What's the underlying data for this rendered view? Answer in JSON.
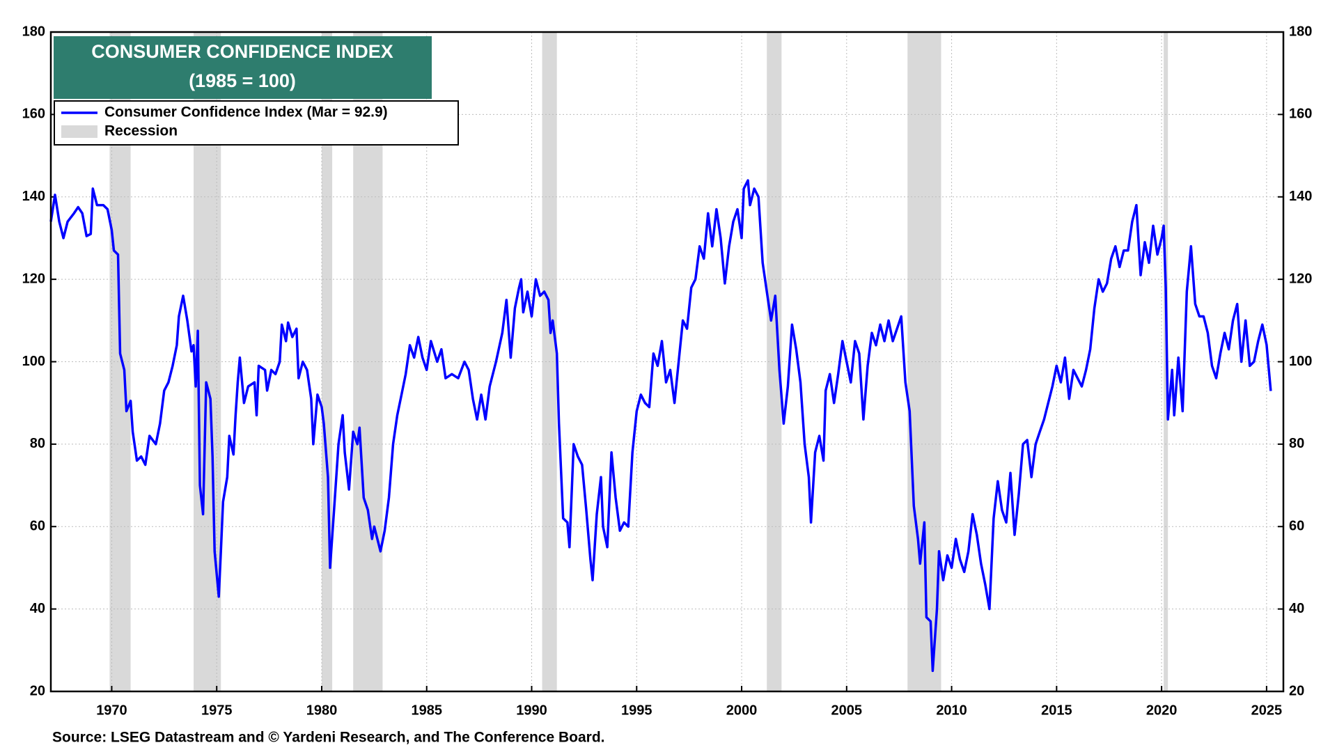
{
  "chart_data": {
    "type": "line",
    "title": "CONSUMER CONFIDENCE INDEX",
    "subtitle": "(1985 = 100)",
    "source": "Source: LSEG Datastream and © Yardeni Research, and The Conference Board.",
    "xlim": [
      1967.1,
      2025.8
    ],
    "xticks": [
      1970,
      1975,
      1980,
      1985,
      1990,
      1995,
      2000,
      2005,
      2010,
      2015,
      2020,
      2025
    ],
    "ylim": [
      20,
      180
    ],
    "yticks": [
      20,
      40,
      60,
      80,
      100,
      120,
      140,
      160,
      180
    ],
    "y2lim": [
      20,
      180
    ],
    "y2ticks": [
      20,
      40,
      60,
      80,
      100,
      120,
      140,
      160,
      180
    ],
    "grid": true,
    "legend": "top-left",
    "recession_label": "Recession",
    "recession_color": "#d9d9d9",
    "recessions": [
      {
        "start": 1969.9,
        "end": 1970.9
      },
      {
        "start": 1973.9,
        "end": 1975.2
      },
      {
        "start": 1980.0,
        "end": 1980.5
      },
      {
        "start": 1981.5,
        "end": 1982.9
      },
      {
        "start": 1990.5,
        "end": 1991.2
      },
      {
        "start": 2001.2,
        "end": 2001.9
      },
      {
        "start": 2007.9,
        "end": 2009.5
      },
      {
        "start": 2020.1,
        "end": 2020.3
      }
    ],
    "x": [
      1967.1,
      1967.3,
      1967.5,
      1967.7,
      1967.9,
      1968.2,
      1968.4,
      1968.6,
      1968.8,
      1969.0,
      1969.1,
      1969.3,
      1969.6,
      1969.8,
      1970.0,
      1970.1,
      1970.3,
      1970.4,
      1970.6,
      1970.7,
      1970.9,
      1971.0,
      1971.2,
      1971.4,
      1971.6,
      1971.8,
      1972.1,
      1972.3,
      1972.5,
      1972.7,
      1972.9,
      1973.1,
      1973.2,
      1973.4,
      1973.6,
      1973.8,
      1973.9,
      1974.0,
      1974.1,
      1974.2,
      1974.35,
      1974.5,
      1974.7,
      1974.8,
      1974.9,
      1975.1,
      1975.2,
      1975.3,
      1975.5,
      1975.6,
      1975.8,
      1975.9,
      1976.0,
      1976.1,
      1976.3,
      1976.5,
      1976.8,
      1976.9,
      1977.0,
      1977.3,
      1977.4,
      1977.6,
      1977.8,
      1978.0,
      1978.1,
      1978.3,
      1978.4,
      1978.6,
      1978.8,
      1978.9,
      1979.1,
      1979.3,
      1979.5,
      1979.6,
      1979.8,
      1980.0,
      1980.1,
      1980.3,
      1980.4,
      1980.6,
      1980.8,
      1981.0,
      1981.1,
      1981.3,
      1981.5,
      1981.7,
      1981.8,
      1982.0,
      1982.2,
      1982.4,
      1982.5,
      1982.7,
      1982.8,
      1983.0,
      1983.2,
      1983.4,
      1983.6,
      1983.8,
      1984.0,
      1984.2,
      1984.4,
      1984.6,
      1984.8,
      1985.0,
      1985.2,
      1985.5,
      1985.7,
      1985.9,
      1986.2,
      1986.5,
      1986.8,
      1987.0,
      1987.2,
      1987.4,
      1987.6,
      1987.8,
      1988.0,
      1988.3,
      1988.6,
      1988.8,
      1989.0,
      1989.2,
      1989.4,
      1989.5,
      1989.6,
      1989.8,
      1990.0,
      1990.2,
      1990.4,
      1990.6,
      1990.8,
      1990.9,
      1991.0,
      1991.2,
      1991.3,
      1991.5,
      1991.7,
      1991.8,
      1992.0,
      1992.2,
      1992.4,
      1992.6,
      1992.8,
      1992.9,
      1993.1,
      1993.3,
      1993.4,
      1993.6,
      1993.8,
      1994.0,
      1994.2,
      1994.4,
      1994.6,
      1994.8,
      1995.0,
      1995.2,
      1995.4,
      1995.6,
      1995.8,
      1996.0,
      1996.2,
      1996.4,
      1996.6,
      1996.8,
      1997.0,
      1997.2,
      1997.4,
      1997.6,
      1997.8,
      1998.0,
      1998.2,
      1998.4,
      1998.6,
      1998.8,
      1999.0,
      1999.2,
      1999.4,
      1999.6,
      1999.8,
      2000.0,
      2000.1,
      2000.3,
      2000.4,
      2000.6,
      2000.8,
      2001.0,
      2001.2,
      2001.4,
      2001.6,
      2001.8,
      2002.0,
      2002.2,
      2002.4,
      2002.6,
      2002.8,
      2003.0,
      2003.2,
      2003.3,
      2003.5,
      2003.7,
      2003.9,
      2004.0,
      2004.2,
      2004.4,
      2004.6,
      2004.8,
      2005.0,
      2005.2,
      2005.4,
      2005.6,
      2005.8,
      2006.0,
      2006.2,
      2006.4,
      2006.6,
      2006.8,
      2007.0,
      2007.2,
      2007.4,
      2007.6,
      2007.8,
      2008.0,
      2008.2,
      2008.4,
      2008.5,
      2008.7,
      2008.8,
      2009.0,
      2009.1,
      2009.3,
      2009.4,
      2009.6,
      2009.8,
      2010.0,
      2010.2,
      2010.4,
      2010.6,
      2010.8,
      2011.0,
      2011.2,
      2011.4,
      2011.6,
      2011.8,
      2012.0,
      2012.2,
      2012.4,
      2012.6,
      2012.8,
      2013.0,
      2013.2,
      2013.4,
      2013.6,
      2013.8,
      2014.0,
      2014.2,
      2014.4,
      2014.6,
      2014.8,
      2015.0,
      2015.2,
      2015.4,
      2015.6,
      2015.8,
      2016.0,
      2016.2,
      2016.4,
      2016.6,
      2016.8,
      2017.0,
      2017.2,
      2017.4,
      2017.6,
      2017.8,
      2018.0,
      2018.2,
      2018.4,
      2018.6,
      2018.8,
      2019.0,
      2019.2,
      2019.4,
      2019.6,
      2019.8,
      2020.0,
      2020.1,
      2020.2,
      2020.3,
      2020.5,
      2020.6,
      2020.8,
      2021.0,
      2021.2,
      2021.4,
      2021.6,
      2021.8,
      2022.0,
      2022.2,
      2022.4,
      2022.6,
      2022.8,
      2023.0,
      2023.2,
      2023.4,
      2023.6,
      2023.8,
      2024.0,
      2024.2,
      2024.4,
      2024.6,
      2024.8,
      2025.0,
      2025.2
    ],
    "series": [
      {
        "name": "Consumer Confidence Index (Mar = 92.9)",
        "color": "#0000ff",
        "values": [
          134,
          140.5,
          134,
          130,
          134,
          136,
          137.5,
          136,
          130.5,
          131,
          142,
          138,
          138,
          137,
          132,
          127,
          126,
          102,
          98,
          88,
          90.5,
          83,
          76,
          77,
          75,
          82,
          80,
          85,
          93,
          95,
          99,
          104,
          111,
          116,
          110,
          102.5,
          104,
          94,
          107.5,
          70,
          63,
          95,
          91,
          77,
          54,
          43,
          54,
          66,
          72,
          82,
          77.5,
          87,
          95,
          101,
          90,
          94,
          95,
          87,
          99,
          98,
          93,
          98,
          97,
          100,
          109,
          105,
          109.5,
          106,
          108,
          96,
          100,
          98,
          91,
          80,
          92,
          89,
          85,
          72,
          50,
          65,
          80,
          87,
          78,
          69,
          83,
          80,
          84,
          67,
          64,
          57,
          60,
          56,
          54,
          59,
          67,
          80,
          87,
          92,
          97,
          104,
          101,
          106,
          101,
          98,
          105,
          100,
          103,
          96,
          97,
          96,
          100,
          98,
          91,
          86,
          92,
          86,
          94,
          100,
          107,
          115,
          101,
          113,
          118,
          120,
          112,
          117,
          111,
          120,
          116,
          117,
          115,
          107,
          110,
          102,
          85,
          62,
          61,
          55,
          80,
          77,
          75,
          64,
          52,
          47,
          63,
          72,
          60,
          55,
          78,
          67,
          59,
          61,
          60,
          78,
          88,
          92,
          90,
          89,
          102,
          99,
          105,
          95,
          98,
          90,
          100,
          110,
          108,
          118,
          120,
          128,
          125,
          136,
          128,
          137,
          130,
          119,
          128,
          134,
          137,
          130,
          142,
          144,
          138,
          142,
          140,
          124,
          117,
          110,
          116,
          98,
          85,
          94,
          109,
          103,
          95,
          80,
          72,
          61,
          78,
          82,
          76,
          93,
          97,
          90,
          97,
          105,
          100,
          95,
          105,
          102,
          86,
          99,
          107,
          104,
          109,
          105,
          110,
          105,
          108,
          111,
          95,
          88,
          65,
          57,
          51,
          61,
          38,
          37,
          25,
          40,
          54,
          47,
          53,
          50,
          57,
          52,
          49,
          54,
          63,
          58,
          51,
          46,
          40,
          62,
          71,
          64,
          61,
          73,
          58,
          68,
          80,
          81,
          72,
          80,
          83,
          86,
          90,
          94,
          99,
          95,
          101,
          91,
          98,
          96,
          94,
          98,
          103,
          113,
          120,
          117,
          119,
          125,
          128,
          123,
          127,
          127,
          134,
          138,
          121,
          129,
          124,
          133,
          126,
          130,
          133,
          118,
          86,
          98,
          87,
          101,
          88,
          117,
          128,
          114,
          111,
          111,
          107,
          99,
          96,
          102,
          107,
          103,
          110,
          114,
          100,
          110,
          99,
          100,
          105,
          109,
          104.1,
          92.9
        ]
      }
    ]
  }
}
